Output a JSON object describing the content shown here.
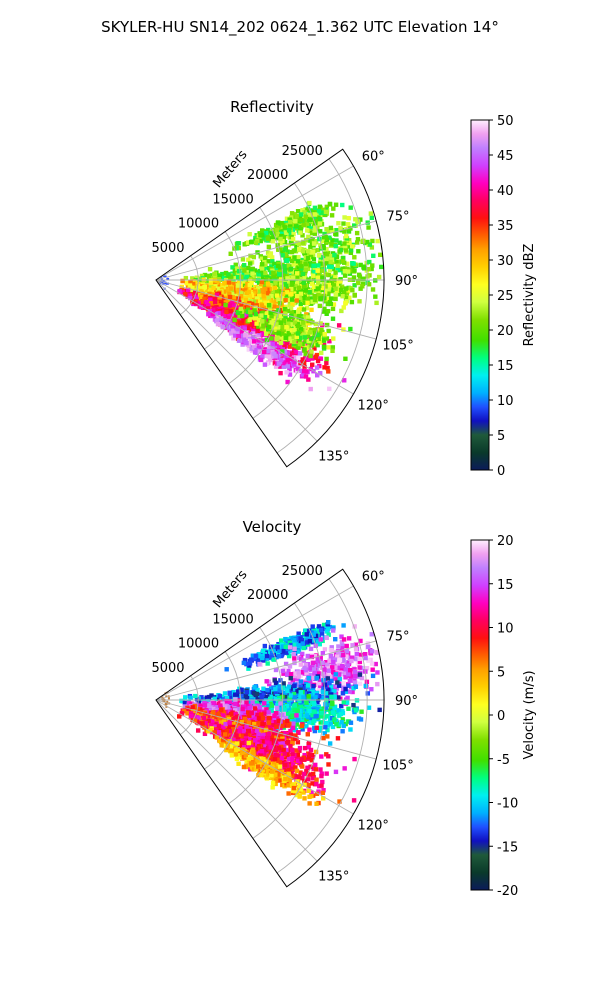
{
  "figure": {
    "suptitle": "SKYLER-HU  SN14_202  0624_1.362 UTC Elevation 14°"
  },
  "chart_data": [
    {
      "type": "heatmap",
      "title": "Reflectivity",
      "projection": "polar-sector",
      "range_axis_label": "Meters",
      "range_ticks": [
        "5000",
        "10000",
        "15000",
        "20000",
        "25000"
      ],
      "range_tick_values": [
        5000,
        10000,
        15000,
        20000,
        25000
      ],
      "range_max": 27000,
      "azimuth_ticks": [
        "60°",
        "75°",
        "90°",
        "105°",
        "120°",
        "135°"
      ],
      "azimuth_tick_values": [
        60,
        75,
        90,
        105,
        120,
        135
      ],
      "azimuth_range": [
        55,
        145
      ],
      "grid": true,
      "colorbar": {
        "label": "Reflectivity dBZ",
        "ticks": [
          "0",
          "5",
          "10",
          "15",
          "20",
          "25",
          "30",
          "35",
          "40",
          "45",
          "50"
        ],
        "range": [
          0,
          50
        ]
      },
      "echo_regions": [
        {
          "az": 68,
          "r": 17000,
          "saz": 1.5,
          "sr": 2500,
          "value": 20
        },
        {
          "az": 80,
          "r": 19500,
          "saz": 5,
          "sr": 4000,
          "value": 21
        },
        {
          "az": 88,
          "r": 14000,
          "saz": 3,
          "sr": 5500,
          "value": 20
        },
        {
          "az": 95,
          "r": 17000,
          "saz": 3,
          "sr": 3500,
          "value": 22
        },
        {
          "az": 98,
          "r": 9000,
          "saz": 3,
          "sr": 2500,
          "value": 29
        },
        {
          "az": 105,
          "r": 11500,
          "saz": 4,
          "sr": 3500,
          "value": 27
        },
        {
          "az": 110,
          "r": 10500,
          "saz": 3,
          "sr": 3000,
          "value": 33
        },
        {
          "az": 113,
          "r": 13500,
          "saz": 3,
          "sr": 3500,
          "value": 37
        },
        {
          "az": 118,
          "r": 13500,
          "saz": 3,
          "sr": 4000,
          "value": 39
        },
        {
          "az": 122,
          "r": 14500,
          "saz": 2,
          "sr": 3000,
          "value": 45
        },
        {
          "az": 110,
          "r": 16500,
          "saz": 3,
          "sr": 2500,
          "value": 22
        }
      ]
    },
    {
      "type": "heatmap",
      "title": "Velocity",
      "projection": "polar-sector",
      "range_axis_label": "Meters",
      "range_ticks": [
        "5000",
        "10000",
        "15000",
        "20000",
        "25000"
      ],
      "range_tick_values": [
        5000,
        10000,
        15000,
        20000,
        25000
      ],
      "range_max": 27000,
      "azimuth_ticks": [
        "60°",
        "75°",
        "90°",
        "105°",
        "120°",
        "135°"
      ],
      "azimuth_tick_values": [
        60,
        75,
        90,
        105,
        120,
        135
      ],
      "azimuth_range": [
        55,
        145
      ],
      "grid": true,
      "colorbar": {
        "label": "Velocity (m/s)",
        "ticks": [
          "-20",
          "-15",
          "-10",
          "-5",
          "0",
          "5",
          "10",
          "15",
          "20"
        ],
        "range": [
          -20,
          20
        ]
      },
      "echo_regions": [
        {
          "az": 68,
          "r": 17000,
          "saz": 1.5,
          "sr": 2500,
          "value": -11
        },
        {
          "az": 80,
          "r": 21000,
          "saz": 4,
          "sr": 3000,
          "value": 16
        },
        {
          "az": 88,
          "r": 14000,
          "saz": 3,
          "sr": 5000,
          "value": -12
        },
        {
          "az": 95,
          "r": 17000,
          "saz": 3,
          "sr": 3000,
          "value": -9
        },
        {
          "az": 98,
          "r": 10000,
          "saz": 3,
          "sr": 2500,
          "value": 15
        },
        {
          "az": 105,
          "r": 11500,
          "saz": 4,
          "sr": 3500,
          "value": 10
        },
        {
          "az": 110,
          "r": 10500,
          "saz": 3,
          "sr": 3000,
          "value": 7
        },
        {
          "az": 113,
          "r": 13500,
          "saz": 3,
          "sr": 3500,
          "value": 11
        },
        {
          "az": 118,
          "r": 13500,
          "saz": 3,
          "sr": 4000,
          "value": 10
        },
        {
          "az": 122,
          "r": 14500,
          "saz": 2,
          "sr": 3000,
          "value": 4
        }
      ]
    }
  ]
}
